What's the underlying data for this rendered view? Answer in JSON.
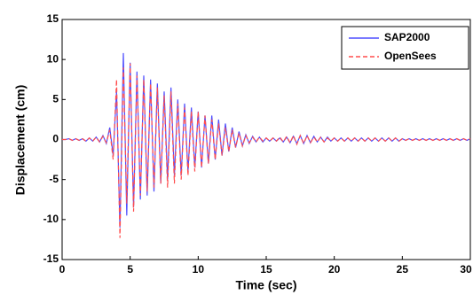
{
  "chart_data": {
    "type": "line",
    "xlabel": "Time (sec)",
    "ylabel": "Displacement (cm)",
    "xlim": [
      0,
      30
    ],
    "xticks": [
      0,
      5,
      10,
      15,
      20,
      25,
      30
    ],
    "ylim": [
      -15,
      15
    ],
    "yticks": [
      -15,
      -10,
      -5,
      0,
      5,
      10,
      15
    ],
    "legend": "upper right",
    "x": [
      0,
      0.25,
      0.5,
      0.75,
      1,
      1.25,
      1.5,
      1.75,
      2,
      2.25,
      2.5,
      2.75,
      3,
      3.25,
      3.5,
      3.75,
      4,
      4.25,
      4.5,
      4.75,
      5,
      5.25,
      5.5,
      5.75,
      6,
      6.25,
      6.5,
      6.75,
      7,
      7.25,
      7.5,
      7.75,
      8,
      8.25,
      8.5,
      8.75,
      9,
      9.25,
      9.5,
      9.75,
      10,
      10.25,
      10.5,
      10.75,
      11,
      11.25,
      11.5,
      11.75,
      12,
      12.25,
      12.5,
      12.75,
      13,
      13.25,
      13.5,
      13.75,
      14,
      14.25,
      14.5,
      14.75,
      15,
      15.25,
      15.5,
      15.75,
      16,
      16.25,
      16.5,
      16.75,
      17,
      17.25,
      17.5,
      17.75,
      18,
      18.25,
      18.5,
      18.75,
      19,
      19.25,
      19.5,
      19.75,
      20,
      20.25,
      20.5,
      20.75,
      21,
      21.25,
      21.5,
      21.75,
      22,
      22.25,
      22.5,
      22.75,
      23,
      23.25,
      23.5,
      23.75,
      24,
      24.25,
      24.5,
      24.75,
      25,
      25.25,
      25.5,
      25.75,
      26,
      26.25,
      26.5,
      26.75,
      27,
      27.25,
      27.5,
      27.75,
      28,
      28.25,
      28.5,
      28.75,
      29,
      29.25,
      29.5,
      29.75,
      30
    ],
    "series": [
      {
        "name": "SAP2000",
        "color": "#4d4dff",
        "linestyle": "solid",
        "values": [
          0,
          0,
          0.1,
          -0.1,
          0.1,
          -0.1,
          0.1,
          -0.2,
          0.2,
          -0.2,
          0.3,
          -0.3,
          0.5,
          -0.5,
          1.5,
          -2,
          6,
          -11,
          10.8,
          -9.5,
          9.6,
          -8.5,
          8.5,
          -7.5,
          8,
          -7,
          7.5,
          -6.5,
          7,
          -5.5,
          6,
          -5,
          6.5,
          -4.5,
          5,
          -4.5,
          4.5,
          -4,
          4,
          -3.5,
          3.5,
          -3.5,
          3,
          -3,
          3,
          -2.5,
          2.5,
          -2,
          2,
          -1.5,
          1.5,
          -1,
          1,
          -0.8,
          0.6,
          -0.5,
          0.4,
          -0.3,
          0.3,
          -0.3,
          0.2,
          -0.2,
          0.2,
          -0.2,
          0.2,
          -0.3,
          0.3,
          -0.4,
          0.4,
          -0.5,
          0.5,
          -0.5,
          0.5,
          -0.4,
          0.4,
          -0.3,
          0.3,
          -0.3,
          0.3,
          -0.2,
          0.2,
          -0.2,
          0.2,
          -0.2,
          0.2,
          -0.2,
          0.2,
          -0.2,
          0.2,
          -0.2,
          0.2,
          -0.2,
          0.2,
          -0.2,
          0.2,
          -0.2,
          0.2,
          -0.2,
          0.2,
          -0.2,
          0.1,
          -0.1,
          0.1,
          -0.1,
          0.1,
          -0.1,
          0.1,
          -0.1,
          0.1,
          -0.1,
          0.1,
          -0.1,
          0.1,
          -0.1,
          0.1,
          -0.1,
          0.1,
          -0.1,
          0.1,
          -0.1,
          0.1
        ]
      },
      {
        "name": "OpenSees",
        "color": "#ff4d4d",
        "linestyle": "dashed",
        "values": [
          0,
          0,
          0.1,
          -0.1,
          0.1,
          -0.1,
          0.1,
          -0.2,
          0.2,
          -0.2,
          0.3,
          -0.3,
          0.4,
          -0.4,
          1.2,
          -2.5,
          7.5,
          -12.3,
          9,
          -8,
          9.5,
          -9,
          8,
          -7,
          7.5,
          -6.5,
          7,
          -6,
          6.5,
          -5.5,
          5.5,
          -6,
          6,
          -5.5,
          4.5,
          -5,
          4,
          -4.5,
          3.5,
          -4,
          3.5,
          -3.5,
          3,
          -3,
          2.5,
          -2.5,
          2,
          -2,
          1.5,
          -1.5,
          1.2,
          -1,
          0.8,
          -0.8,
          0.5,
          -0.4,
          0.3,
          -0.3,
          0.3,
          -0.2,
          0.2,
          -0.2,
          0.2,
          -0.2,
          0.3,
          -0.3,
          0.4,
          -0.4,
          0.5,
          -0.6,
          0.5,
          -0.5,
          0.5,
          -0.4,
          0.3,
          -0.3,
          0.3,
          -0.3,
          0.2,
          -0.2,
          0.2,
          -0.2,
          0.2,
          -0.2,
          0.2,
          -0.2,
          0.2,
          -0.2,
          0.2,
          -0.2,
          0.2,
          -0.2,
          0.2,
          -0.2,
          0.2,
          -0.2,
          0.2,
          -0.2,
          0.2,
          -0.2,
          0.1,
          -0.1,
          0.1,
          -0.1,
          0.1,
          -0.1,
          0.1,
          -0.1,
          0.1,
          -0.1,
          0.1,
          -0.1,
          0.1,
          -0.1,
          0.1,
          -0.1,
          0.1,
          -0.1,
          0.1,
          -0.1,
          0.1
        ]
      }
    ]
  }
}
